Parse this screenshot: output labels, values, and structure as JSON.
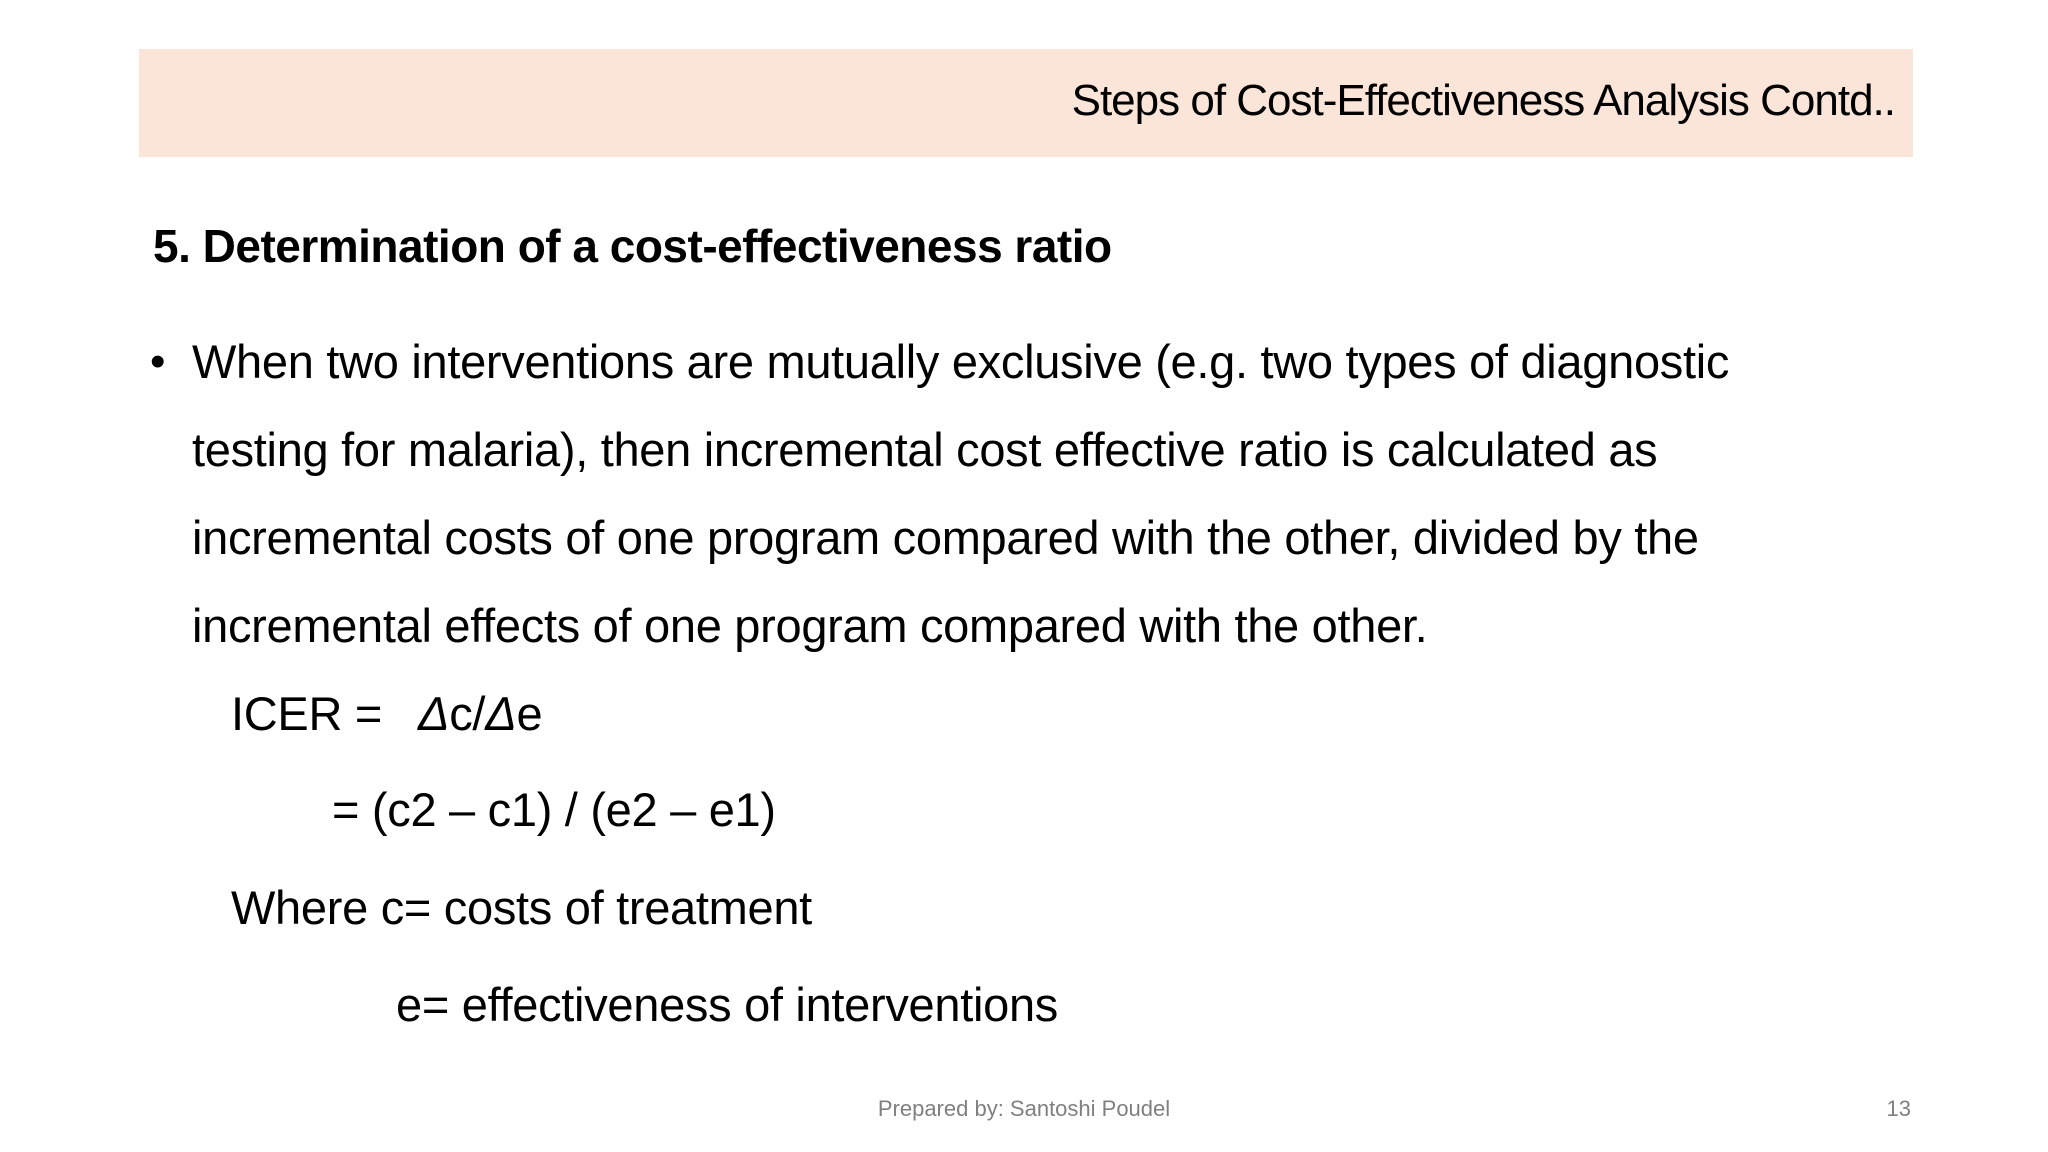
{
  "slide": {
    "title": "Steps of Cost-Effectiveness Analysis Contd..",
    "heading": "5. Determination of a cost-effectiveness ratio",
    "bullet": {
      "symbol": "•",
      "lines": [
        "When two interventions are mutually exclusive (e.g. two types of diagnostic",
        "testing for malaria), then incremental cost effective ratio is calculated as",
        "incremental costs of one program compared with the other, divided by the",
        "incremental effects of one program compared with the other."
      ]
    },
    "formula": {
      "icer_label": "ICER =",
      "icer_delta_c": "Δ",
      "icer_c": "c/",
      "icer_delta_e": "Δ",
      "icer_e": "e",
      "expanded": "= (c2 – c1) / (e2 – e1)",
      "where_c": "Where c= costs of treatment",
      "where_e": "e= effectiveness of interventions"
    },
    "footer": {
      "prepared_by": "Prepared by: Santoshi Poudel",
      "page_number": "13"
    },
    "colors": {
      "title_band": "#fbe5d8",
      "footer_text": "#808080"
    }
  }
}
